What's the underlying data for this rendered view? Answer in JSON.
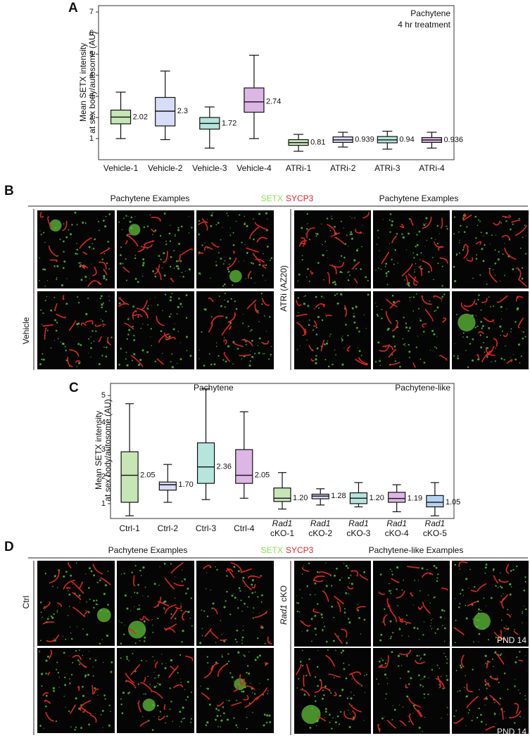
{
  "chart_data": [
    {
      "type": "box",
      "panel_label": "A",
      "y_label": [
        "Mean SETX intensity",
        "at sex body/autosome (AU)"
      ],
      "annotations": [
        "Pachytene",
        "4 hr treatment"
      ],
      "categories": [
        "Vehicle-1",
        "Vehicle-2",
        "Vehicle-3",
        "Vehicle-4",
        "ATRi-1",
        "ATRi-2",
        "ATRi-3",
        "ATRi-4"
      ],
      "boxes": [
        {
          "median": 2.02,
          "q1": 1.7,
          "q3": 2.35,
          "whisker_low": 1.0,
          "whisker_high": 3.2,
          "color": "#5cb82f"
        },
        {
          "median": 2.3,
          "q1": 1.6,
          "q3": 2.95,
          "whisker_low": 0.95,
          "whisker_high": 4.2,
          "color": "#8c9ae8"
        },
        {
          "median": 1.72,
          "q1": 1.45,
          "q3": 2.0,
          "whisker_low": 0.55,
          "whisker_high": 2.5,
          "color": "#2bb59a"
        },
        {
          "median": 2.74,
          "q1": 2.25,
          "q3": 3.4,
          "whisker_low": 1.0,
          "whisker_high": 4.95,
          "color": "#9b2fb5"
        },
        {
          "median": 0.81,
          "q1": 0.68,
          "q3": 0.95,
          "whisker_low": 0.4,
          "whisker_high": 1.2,
          "color": "#5cb82f"
        },
        {
          "median": 0.939,
          "q1": 0.82,
          "q3": 1.08,
          "whisker_low": 0.6,
          "whisker_high": 1.3,
          "color": "#8c9ae8"
        },
        {
          "median": 0.94,
          "q1": 0.8,
          "q3": 1.1,
          "whisker_low": 0.5,
          "whisker_high": 1.35,
          "color": "#2bb59a"
        },
        {
          "median": 0.936,
          "q1": 0.82,
          "q3": 1.05,
          "whisker_low": 0.55,
          "whisker_high": 1.3,
          "color": "#9b2fb5"
        }
      ],
      "ylim": [
        0,
        7.3
      ],
      "yticks": [
        1,
        2,
        3,
        4,
        5,
        6,
        7
      ]
    },
    {
      "type": "box",
      "panel_label": "C",
      "y_label": [
        "Mean SETX intensity",
        "at sex body/autosome (AU)"
      ],
      "annotations": [
        "Pachytene",
        "Pachytene-like"
      ],
      "categories": [
        [
          "Ctrl-1"
        ],
        [
          "Ctrl-2"
        ],
        [
          "Ctrl-3"
        ],
        [
          "Ctrl-4"
        ],
        [
          "Rad1",
          "cKO-1"
        ],
        [
          "Rad1",
          "cKO-2"
        ],
        [
          "Rad1",
          "cKO-3"
        ],
        [
          "Rad1",
          "cKO-4"
        ],
        [
          "Rad1",
          "cKO-5"
        ]
      ],
      "boxes": [
        {
          "median": 2.05,
          "q1": 1.05,
          "q3": 2.92,
          "whisker_low": 0.55,
          "whisker_high": 4.7,
          "color": "#5cb82f"
        },
        {
          "median": 1.7,
          "q1": 1.5,
          "q3": 1.8,
          "whisker_low": 1.05,
          "whisker_high": 2.45,
          "color": "#8c9ae8"
        },
        {
          "median": 2.36,
          "q1": 1.75,
          "q3": 3.25,
          "whisker_low": 1.15,
          "whisker_high": 5.25,
          "color": "#2bb59a"
        },
        {
          "median": 2.05,
          "q1": 1.75,
          "q3": 3.0,
          "whisker_low": 1.2,
          "whisker_high": 4.4,
          "color": "#9b2fb5"
        },
        {
          "median": 1.2,
          "q1": 1.08,
          "q3": 1.58,
          "whisker_low": 0.8,
          "whisker_high": 2.15,
          "color": "#5cb82f"
        },
        {
          "median": 1.28,
          "q1": 1.18,
          "q3": 1.35,
          "whisker_low": 0.95,
          "whisker_high": 1.55,
          "color": "#8c9ae8"
        },
        {
          "median": 1.2,
          "q1": 1.0,
          "q3": 1.4,
          "whisker_low": 0.88,
          "whisker_high": 1.78,
          "color": "#2bb59a"
        },
        {
          "median": 1.19,
          "q1": 1.05,
          "q3": 1.42,
          "whisker_low": 0.7,
          "whisker_high": 1.7,
          "color": "#9b2fb5"
        },
        {
          "median": 1.05,
          "q1": 0.88,
          "q3": 1.3,
          "whisker_low": 0.55,
          "whisker_high": 1.78,
          "color": "#2f7fd6"
        }
      ],
      "value_labels": [
        "2.05",
        "1.70",
        "2.36",
        "2.05",
        "1.20",
        "1.28",
        "1.20",
        "1.19",
        "1.05"
      ],
      "ylim": [
        0.45,
        5.45
      ],
      "yticks": [
        1,
        2,
        3,
        4,
        5
      ]
    }
  ],
  "panel_b": {
    "label": "B",
    "headers": [
      "Pachytene Examples",
      "Pachytene Examples"
    ],
    "stain": [
      "SETX",
      "SYCP3"
    ],
    "row_labels": [
      [
        "Vehicle"
      ],
      [
        "ATRi (AZ20)"
      ]
    ]
  },
  "panel_d": {
    "label": "D",
    "headers": [
      "Pachytene Examples",
      "Pachytene-like Examples"
    ],
    "stain": [
      "SETX",
      "SYCP3"
    ],
    "row_labels": [
      [
        "Ctrl"
      ],
      [
        "Rad1",
        "cKO"
      ]
    ],
    "image_notes": [
      "PND 14",
      "PND 14"
    ]
  }
}
